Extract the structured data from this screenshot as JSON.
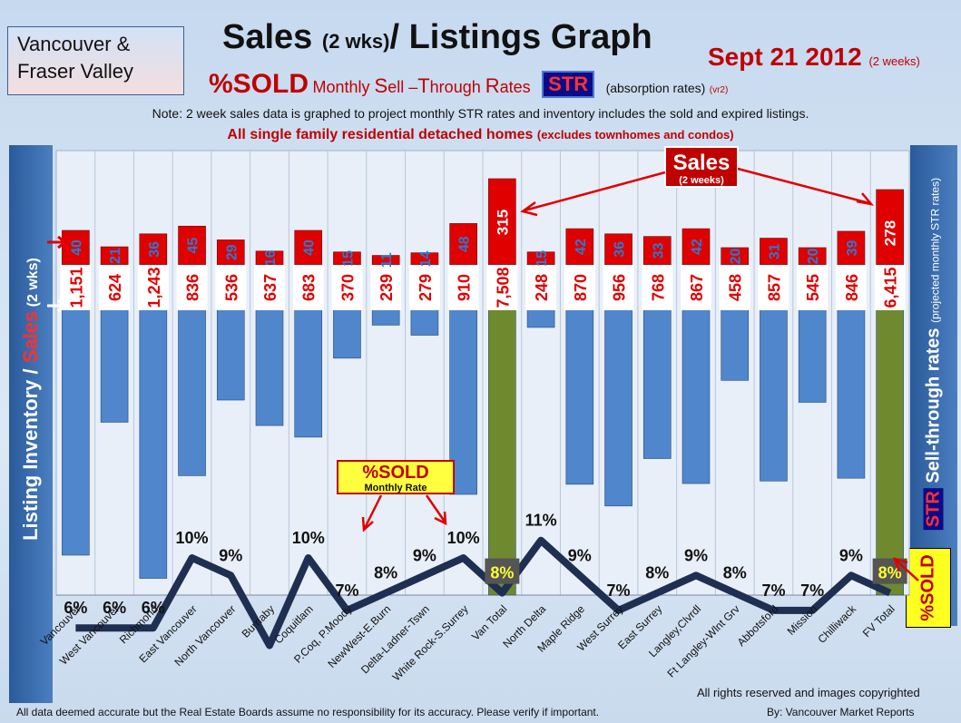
{
  "header": {
    "region_line1": "Vancouver &",
    "region_line2": "Fraser Valley",
    "title_a": "Sales",
    "title_b": "(2 wks)",
    "title_c": "/ Listings Graph",
    "date": "Sept 21 2012",
    "date_note": "(2 weeks)",
    "sub_sold": "%SOLD",
    "sub_m": "Monthly ",
    "sub_S": "S",
    "sub_ell": "ell –",
    "sub_T": "T",
    "sub_hrough": "hrough ",
    "sub_R": "R",
    "sub_ates": "ates",
    "str_badge": "STR",
    "absorption": "(absorption rates)",
    "version": "(vr2)",
    "note": "Note: 2 week sales data is graphed to project monthly STR rates and inventory includes the sold and expired listings.",
    "scope_main": "All single family residential detached homes",
    "scope_sub": "(excludes townhomes and condos)"
  },
  "axes": {
    "left_inv": "Listing Inventory",
    "left_slash": " / ",
    "left_sales": "Sales",
    "left_paren": " (2 wks)",
    "right_str": "STR",
    "right_main": " Sell-through rates",
    "right_sub": "(projected monthly STR rates)",
    "sold_badge": "%SOLD"
  },
  "callouts": {
    "sales_main": "Sales",
    "sales_sub": "(2 weeks)",
    "sold_main": "%SOLD",
    "sold_sub": "Monthly Rate"
  },
  "footer": {
    "rights": "All rights reserved and  images copyrighted",
    "disclaimer": "All data deemed accurate but the Real Estate Boards assume no responsibility for its accuracy.  Please verify if important.",
    "byline": "By: Vancouver  Market Reports"
  },
  "colors": {
    "sales_bar": "#e00000",
    "listing_bar": "#4f86cc",
    "total_bar": "#6f8a2e",
    "str_line": "#1f2f52",
    "sales_label": "#2a7ad0",
    "listing_label": "#e00000"
  },
  "chart_data": {
    "type": "bar",
    "categories": [
      "Vancouver",
      "West Vancouver",
      "Richmond",
      "East Vancouver",
      "North Vancouver",
      "Burnaby",
      "Coquitlam",
      "P.Coq, P.Moody",
      "NewWest-E.Burn",
      "Delta-Ladner-Tswn",
      "White Rock-S.Surrey",
      "Van Total",
      "North Delta",
      "Maple Ridge",
      "West Surrey",
      "East Surrey",
      "Langley,Clvrdl",
      "Ft Langley-Wlnt Grv",
      "Abbotsford",
      "Mission",
      "Chilliwack",
      "FV Total"
    ],
    "series": [
      {
        "name": "Sales",
        "values": [
          40,
          21,
          36,
          45,
          29,
          16,
          40,
          15,
          11,
          14,
          48,
          315,
          15,
          42,
          36,
          33,
          42,
          20,
          31,
          20,
          39,
          278
        ]
      },
      {
        "name": "Listing Inventory",
        "values": [
          1151,
          624,
          1243,
          836,
          536,
          637,
          683,
          370,
          239,
          279,
          910,
          7508,
          248,
          870,
          956,
          768,
          867,
          458,
          857,
          545,
          846,
          6415
        ]
      },
      {
        "name": "%SOLD",
        "values": [
          6,
          6,
          6,
          10,
          9,
          5,
          10,
          7,
          8,
          9,
          10,
          8,
          11,
          9,
          7,
          8,
          9,
          8,
          7,
          7,
          9,
          8
        ]
      }
    ],
    "value_labels": {
      "sales": [
        "40",
        "21",
        "36",
        "45",
        "29",
        "16",
        "40",
        "15",
        "11",
        "14",
        "48",
        "315",
        "15",
        "42",
        "36",
        "33",
        "42",
        "20",
        "31",
        "20",
        "39",
        "278"
      ],
      "listings": [
        "1,151",
        "624",
        "1,243",
        "836",
        "536",
        "637",
        "683",
        "370",
        "239",
        "279",
        "910",
        "7,508",
        "248",
        "870",
        "956",
        "768",
        "867",
        "458",
        "857",
        "545",
        "846",
        "6,415"
      ],
      "percent": [
        "6%",
        "6%",
        "6%",
        "10%",
        "9%",
        "",
        "10%",
        "7%",
        "8%",
        "9%",
        "10%",
        "8%",
        "11%",
        "9%",
        "7%",
        "8%",
        "9%",
        "8%",
        "7%",
        "7%",
        "9%",
        "8%"
      ]
    },
    "total_categories": [
      "Van Total",
      "FV Total"
    ],
    "grid": true
  }
}
